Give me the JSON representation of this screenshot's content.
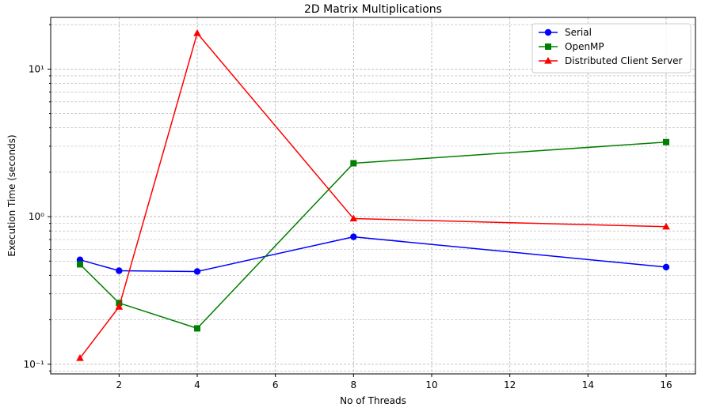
{
  "chart_data": {
    "type": "line",
    "title": "2D Matrix Multiplications",
    "xlabel": "No of Threads",
    "ylabel": "Execution Time (seconds)",
    "x_scale": "linear",
    "y_scale": "log",
    "xlim": [
      0.25,
      16.75
    ],
    "ylim": [
      0.086,
      22.4
    ],
    "x_ticks": [
      2,
      4,
      6,
      8,
      10,
      12,
      14,
      16
    ],
    "x_tick_labels": [
      "2",
      "4",
      "6",
      "8",
      "10",
      "12",
      "14",
      "16"
    ],
    "y_ticks": [
      0.1,
      1,
      10
    ],
    "y_tick_labels": [
      "10⁻¹",
      "10⁰",
      "10¹"
    ],
    "grid": true,
    "legend_position": "top-right",
    "x": [
      1,
      2,
      4,
      8,
      16
    ],
    "series": [
      {
        "name": "Serial",
        "values": [
          0.51,
          0.43,
          0.425,
          0.73,
          0.455
        ],
        "color": "#0000ff",
        "marker": "circle"
      },
      {
        "name": "OpenMP",
        "values": [
          0.475,
          0.26,
          0.175,
          2.3,
          3.2
        ],
        "color": "#008000",
        "marker": "square"
      },
      {
        "name": "Distributed Client Server",
        "values": [
          0.11,
          0.245,
          17.5,
          0.97,
          0.855
        ],
        "color": "#ff0000",
        "marker": "triangle"
      }
    ]
  }
}
